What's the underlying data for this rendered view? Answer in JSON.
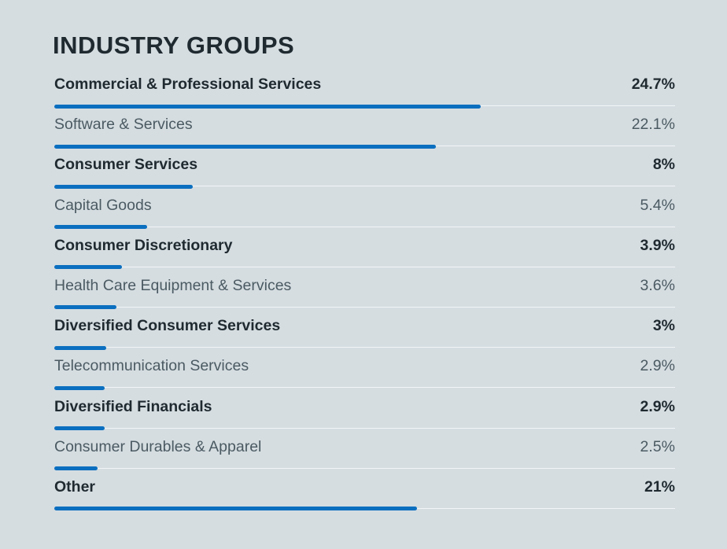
{
  "chart_data": {
    "type": "bar",
    "title": "INDUSTRY GROUPS",
    "unit": "%",
    "max_value": 24.7,
    "bar_color": "#0b6fc0",
    "items": [
      {
        "label": "Commercial & Professional Services",
        "value": 24.7,
        "display": "24.7%",
        "emphasis": true
      },
      {
        "label": "Software & Services",
        "value": 22.1,
        "display": "22.1%",
        "emphasis": false
      },
      {
        "label": "Consumer Services",
        "value": 8,
        "display": "8%",
        "emphasis": true
      },
      {
        "label": "Capital Goods",
        "value": 5.4,
        "display": "5.4%",
        "emphasis": false
      },
      {
        "label": "Consumer Discretionary",
        "value": 3.9,
        "display": "3.9%",
        "emphasis": true
      },
      {
        "label": "Health Care Equipment & Services",
        "value": 3.6,
        "display": "3.6%",
        "emphasis": false
      },
      {
        "label": "Diversified Consumer Services",
        "value": 3,
        "display": "3%",
        "emphasis": true
      },
      {
        "label": "Telecommunication Services",
        "value": 2.9,
        "display": "2.9%",
        "emphasis": false
      },
      {
        "label": "Diversified Financials",
        "value": 2.9,
        "display": "2.9%",
        "emphasis": true
      },
      {
        "label": "Consumer Durables & Apparel",
        "value": 2.5,
        "display": "2.5%",
        "emphasis": false
      },
      {
        "label": "Other",
        "value": 21,
        "display": "21%",
        "emphasis": true
      }
    ]
  }
}
